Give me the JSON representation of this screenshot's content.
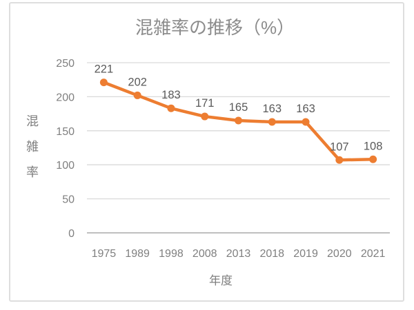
{
  "chart_data": {
    "type": "line",
    "title": "混雑率の推移（%）",
    "xlabel": "年度",
    "ylabel": "混雑率",
    "categories": [
      "1975",
      "1989",
      "1998",
      "2008",
      "2013",
      "2018",
      "2019",
      "2020",
      "2021"
    ],
    "values": [
      221,
      202,
      183,
      171,
      165,
      163,
      163,
      107,
      108
    ],
    "ylim": [
      0,
      250
    ],
    "yticks": [
      0,
      50,
      100,
      150,
      200,
      250
    ],
    "grid": true,
    "legend": "none",
    "data_labels": true,
    "marker": "circle"
  },
  "colors": {
    "line": "#ED7D31",
    "marker": "#ED7D31",
    "gridline": "#D9D9D9",
    "axis_line": "#BFBFBF",
    "frame_border": "#DEDEDE",
    "title_text": "#8C8C8C",
    "tick_text": "#7F7F7F",
    "axis_title_text": "#7F7F7F",
    "data_label_text": "#595959",
    "background": "#FFFFFF"
  }
}
